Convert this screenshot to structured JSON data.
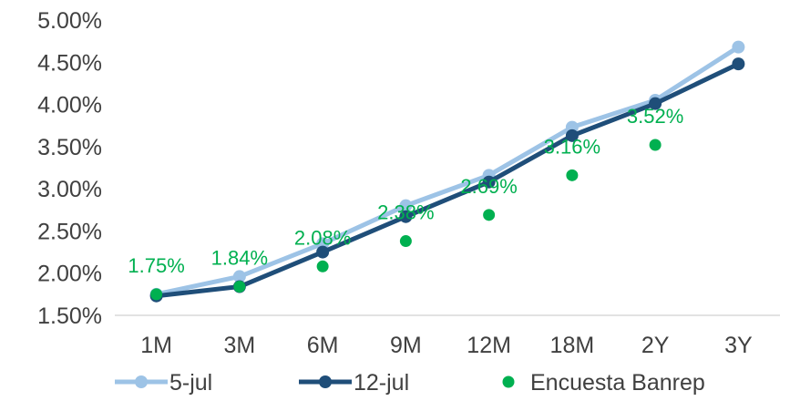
{
  "chart_data": {
    "type": "line",
    "title": "",
    "xlabel": "",
    "ylabel": "",
    "categories": [
      "1M",
      "3M",
      "6M",
      "9M",
      "12M",
      "18M",
      "2Y",
      "3Y"
    ],
    "ylim": [
      1.5,
      5.0
    ],
    "yticks": [
      "1.50%",
      "2.00%",
      "2.50%",
      "3.00%",
      "3.50%",
      "4.00%",
      "4.50%",
      "5.00%"
    ],
    "grid": false,
    "legend": "bottom",
    "series": [
      {
        "name": "5-jul",
        "kind": "line",
        "color": "#9DC3E6",
        "values": [
          1.75,
          1.96,
          2.35,
          2.8,
          3.16,
          3.73,
          4.05,
          4.68
        ]
      },
      {
        "name": "12-jul",
        "kind": "line",
        "color": "#1F4E79",
        "values": [
          1.73,
          1.84,
          2.25,
          2.67,
          3.08,
          3.63,
          4.01,
          4.48
        ]
      },
      {
        "name": "Encuesta Banrep",
        "kind": "scatter",
        "color": "#00B050",
        "values": [
          1.75,
          1.84,
          2.08,
          2.38,
          2.69,
          3.16,
          3.52,
          null
        ],
        "labels": [
          "1.75%",
          "1.84%",
          "2.08%",
          "2.38%",
          "2.69%",
          "3.16%",
          "3.52%",
          null
        ]
      }
    ]
  }
}
